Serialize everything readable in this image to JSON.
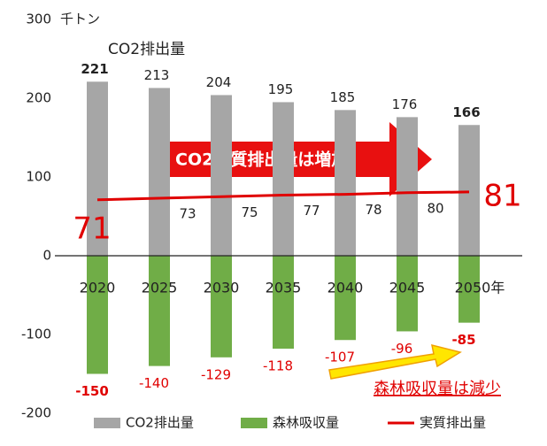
{
  "chart_data": {
    "type": "bar",
    "unit_label": "千トン",
    "annotations": [
      "CO2排出量",
      "CO2実質排出量は増加",
      "森林吸収量は減少"
    ],
    "categories": [
      "2020",
      "2025",
      "2030",
      "2035",
      "2040",
      "2045",
      "2050年"
    ],
    "series": [
      {
        "name": "CO2排出量",
        "type": "bar",
        "color": "#a6a6a6",
        "values": [
          221,
          213,
          204,
          195,
          185,
          176,
          166
        ]
      },
      {
        "name": "森林吸収量",
        "type": "bar",
        "color": "#70ad47",
        "values": [
          -150,
          -140,
          -129,
          -118,
          -107,
          -96,
          -85
        ]
      },
      {
        "name": "実質排出量",
        "type": "line",
        "color": "#e00000",
        "values": [
          71,
          73,
          75,
          77,
          78,
          80,
          81
        ]
      }
    ],
    "ylim": [
      -200,
      300
    ],
    "yticks": [
      -200,
      -100,
      0,
      100,
      200,
      300
    ],
    "grid": false,
    "legend": "bottom"
  }
}
